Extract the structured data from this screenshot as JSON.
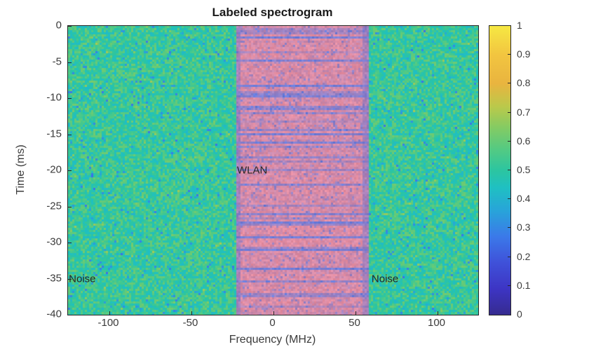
{
  "window": {
    "background": "#ffffff"
  },
  "chart_data": {
    "type": "heatmap",
    "subtype": "spectrogram",
    "title": "Labeled spectrogram",
    "xlabel": "Frequency (MHz)",
    "ylabel": "Time (ms)",
    "x_range": [
      -125,
      125
    ],
    "y_range": [
      0,
      -40
    ],
    "x_ticks": [
      {
        "value": -100,
        "label": "-100"
      },
      {
        "value": -50,
        "label": "-50"
      },
      {
        "value": 0,
        "label": "0"
      },
      {
        "value": 50,
        "label": "50"
      },
      {
        "value": 100,
        "label": "100"
      }
    ],
    "y_ticks": [
      {
        "value": 0,
        "label": "0"
      },
      {
        "value": -5,
        "label": "-5"
      },
      {
        "value": -10,
        "label": "-10"
      },
      {
        "value": -15,
        "label": "-15"
      },
      {
        "value": -20,
        "label": "-20"
      },
      {
        "value": -25,
        "label": "-25"
      },
      {
        "value": -30,
        "label": "-30"
      },
      {
        "value": -35,
        "label": "-35"
      },
      {
        "value": -40,
        "label": "-40"
      }
    ],
    "colormap": "parula",
    "colorbar": {
      "min": 0,
      "max": 1,
      "ticks": [
        {
          "value": 0,
          "label": "0"
        },
        {
          "value": 0.1,
          "label": "0.1"
        },
        {
          "value": 0.2,
          "label": "0.2"
        },
        {
          "value": 0.3,
          "label": "0.3"
        },
        {
          "value": 0.4,
          "label": "0.4"
        },
        {
          "value": 0.5,
          "label": "0.5"
        },
        {
          "value": 0.6,
          "label": "0.6"
        },
        {
          "value": 0.7,
          "label": "0.7"
        },
        {
          "value": 0.8,
          "label": "0.8"
        },
        {
          "value": 0.9,
          "label": "0.9"
        },
        {
          "value": 1,
          "label": "1"
        }
      ],
      "gradient_stops": [
        {
          "v": 0.0,
          "color": "#362b90"
        },
        {
          "v": 0.09,
          "color": "#3d35c4"
        },
        {
          "v": 0.18,
          "color": "#3f51d9"
        },
        {
          "v": 0.27,
          "color": "#3b79e9"
        },
        {
          "v": 0.36,
          "color": "#28a4d9"
        },
        {
          "v": 0.44,
          "color": "#1fc0c2"
        },
        {
          "v": 0.5,
          "color": "#2cc5a0"
        },
        {
          "v": 0.57,
          "color": "#52ca84"
        },
        {
          "v": 0.65,
          "color": "#85cb62"
        },
        {
          "v": 0.72,
          "color": "#bac94b"
        },
        {
          "v": 0.8,
          "color": "#e9b43f"
        },
        {
          "v": 0.9,
          "color": "#f2c540"
        },
        {
          "v": 1.0,
          "color": "#f6e843"
        }
      ]
    },
    "regions": [
      {
        "label": "Noise",
        "kind": "noise",
        "freq_range": [
          -125,
          -23
        ]
      },
      {
        "label": "WLAN",
        "kind": "wlan",
        "freq_range": [
          -23,
          58
        ],
        "overlay_color": "#e58da1",
        "streak_color": "#667cde",
        "edge_color": "#7d76c8"
      },
      {
        "label": "Noise",
        "kind": "noise",
        "freq_range": [
          58,
          125
        ]
      }
    ],
    "annotations": [
      {
        "text": "WLAN",
        "freq": -22,
        "time": -20
      },
      {
        "text": "Noise",
        "freq": -124.5,
        "time": -35
      },
      {
        "text": "Noise",
        "freq": 60,
        "time": -35
      }
    ],
    "noise_stats": {
      "mean": 0.52,
      "spread": 0.2
    }
  },
  "styles": {
    "axis_color": "#262626",
    "tick_label_color": "#3b3b3b",
    "title_color": "#1a1a1a"
  }
}
